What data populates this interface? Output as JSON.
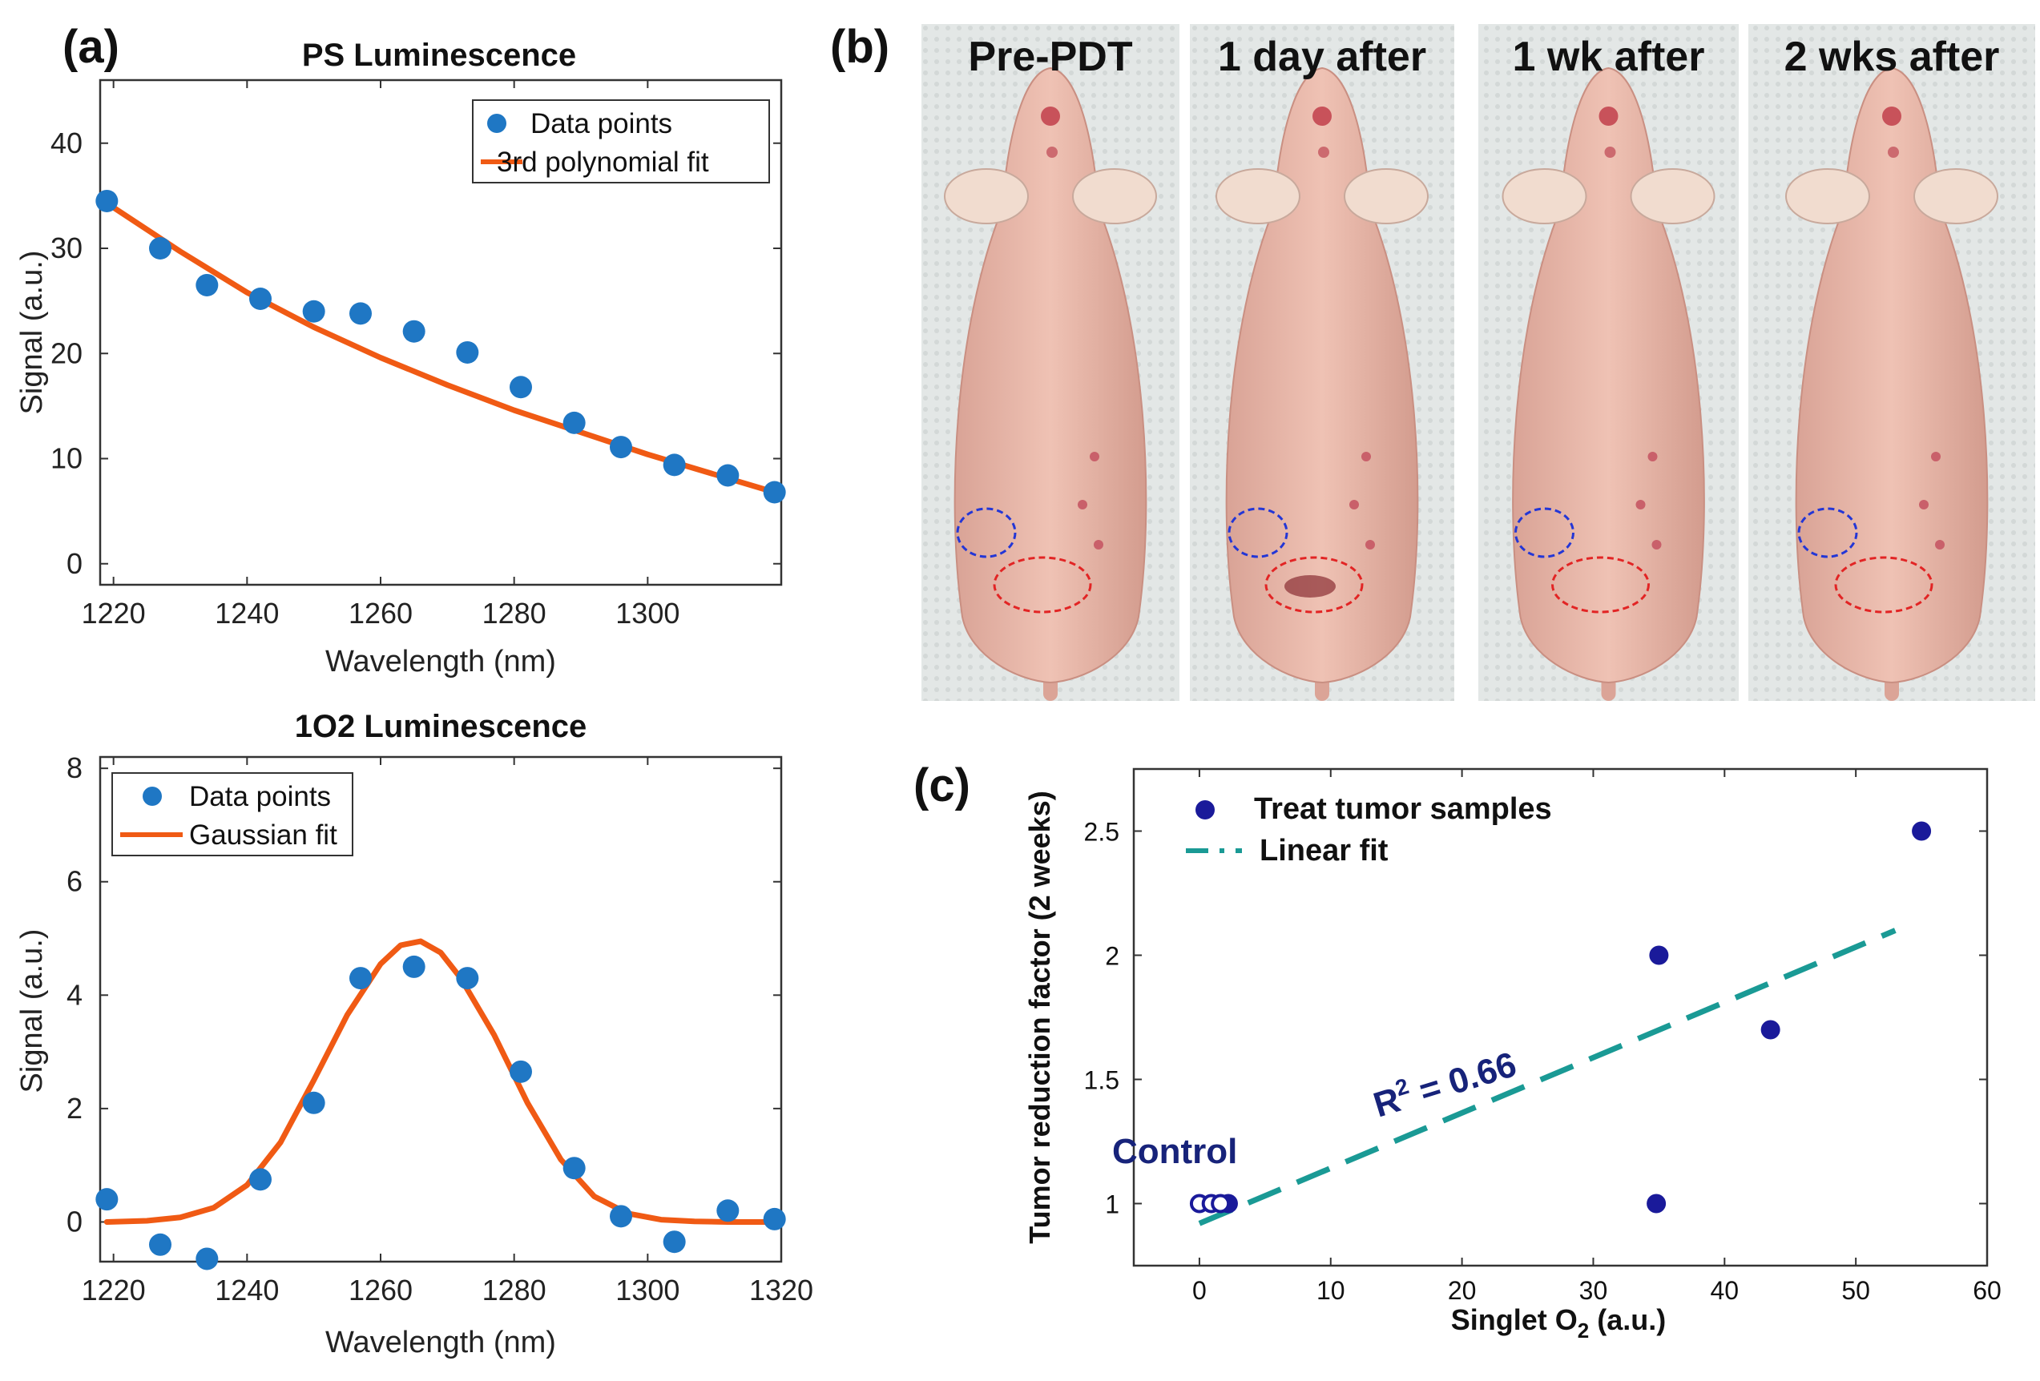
{
  "panels": {
    "a": "(a)",
    "b": "(b)",
    "c": "(c)"
  },
  "colors": {
    "data": "#1f77c4",
    "fit": "#f05a14",
    "c_points": "#1a1a9a",
    "c_fit": "#1a9a95",
    "annotation": "#17237a"
  },
  "photo_labels": [
    "Pre-PDT",
    "1 day after",
    "1 wk after",
    "2 wks after"
  ],
  "chart_data": [
    {
      "id": "ps",
      "type": "scatter",
      "title": "PS Luminescence",
      "xlabel": "Wavelength (nm)",
      "ylabel": "Signal (a.u.)",
      "xlim": [
        1218,
        1320
      ],
      "ylim": [
        -2,
        46
      ],
      "xticks": [
        1220,
        1240,
        1260,
        1280,
        1300
      ],
      "yticks": [
        0,
        10,
        20,
        30,
        40
      ],
      "grid": false,
      "legend_position": "top-right",
      "series": [
        {
          "name": "Data points",
          "kind": "points",
          "x": [
            1219,
            1227,
            1234,
            1242,
            1250,
            1257,
            1265,
            1273,
            1281,
            1289,
            1296,
            1304,
            1312,
            1319
          ],
          "y": [
            34.5,
            30,
            26.5,
            25.2,
            24,
            23.8,
            22.1,
            20.1,
            16.8,
            13.4,
            11.1,
            9.4,
            8.4,
            6.8
          ]
        },
        {
          "name": "3rd polynomial fit",
          "kind": "line",
          "x": [
            1219,
            1230,
            1240,
            1250,
            1260,
            1270,
            1280,
            1290,
            1300,
            1310,
            1319
          ],
          "y": [
            34.3,
            29.7,
            25.8,
            22.5,
            19.6,
            17.0,
            14.6,
            12.5,
            10.4,
            8.5,
            6.8
          ]
        }
      ]
    },
    {
      "id": "o2",
      "type": "scatter",
      "title": "1O2 Luminescence",
      "xlabel": "Wavelength (nm)",
      "ylabel": "Signal (a.u.)",
      "xlim": [
        1218,
        1320
      ],
      "ylim": [
        -0.7,
        8.2
      ],
      "xticks": [
        1220,
        1240,
        1260,
        1280,
        1300,
        1320
      ],
      "yticks": [
        0,
        2,
        4,
        6,
        8
      ],
      "grid": false,
      "legend_position": "top-left",
      "series": [
        {
          "name": "Data points",
          "kind": "points",
          "x": [
            1219,
            1227,
            1234,
            1242,
            1250,
            1257,
            1265,
            1273,
            1281,
            1289,
            1296,
            1304,
            1312,
            1319
          ],
          "y": [
            0.4,
            -0.4,
            -0.65,
            0.75,
            2.1,
            4.3,
            4.5,
            4.3,
            2.65,
            0.95,
            0.1,
            -0.35,
            0.2,
            0.05
          ]
        },
        {
          "name": "Gaussian fit",
          "kind": "line",
          "x": [
            1219,
            1225,
            1230,
            1235,
            1240,
            1245,
            1250,
            1255,
            1260,
            1263,
            1266,
            1269,
            1272,
            1277,
            1282,
            1287,
            1292,
            1297,
            1302,
            1307,
            1312,
            1319
          ],
          "y": [
            0.0,
            0.02,
            0.08,
            0.25,
            0.65,
            1.4,
            2.5,
            3.65,
            4.55,
            4.88,
            4.95,
            4.75,
            4.3,
            3.3,
            2.1,
            1.1,
            0.45,
            0.15,
            0.04,
            0.01,
            0.0,
            0.0
          ]
        }
      ]
    },
    {
      "id": "c",
      "type": "scatter",
      "title": "",
      "xlabel_main": "Singlet O",
      "xlabel_sub": "2",
      "xlabel_tail": " (a.u.)",
      "ylabel": "Tumor reduction factor (2 weeks)",
      "xlim": [
        -5,
        60
      ],
      "ylim": [
        0.75,
        2.75
      ],
      "xticks": [
        0,
        10,
        20,
        30,
        40,
        50,
        60
      ],
      "yticks": [
        1,
        1.5,
        2,
        2.5
      ],
      "grid": false,
      "legend_position": "top-left",
      "annotations": {
        "control": "Control",
        "r2_main": "R",
        "r2_sup": "2",
        "r2_tail": " = 0.66"
      },
      "series": [
        {
          "name": "Treat tumor samples",
          "kind": "points",
          "x": [
            34.8,
            35,
            43.5,
            55,
            2.2
          ],
          "y": [
            1.0,
            2.0,
            1.7,
            2.5,
            1.0
          ]
        },
        {
          "name": "",
          "kind": "open-points",
          "x": [
            0,
            0.9,
            1.6
          ],
          "y": [
            1.0,
            1.0,
            1.0
          ]
        },
        {
          "name": "Linear fit",
          "kind": "dashed-line",
          "x": [
            0,
            53
          ],
          "y": [
            0.92,
            2.1
          ]
        }
      ]
    }
  ]
}
